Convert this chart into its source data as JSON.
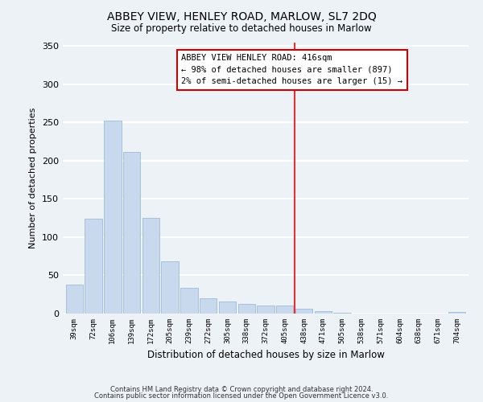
{
  "title": "ABBEY VIEW, HENLEY ROAD, MARLOW, SL7 2DQ",
  "subtitle": "Size of property relative to detached houses in Marlow",
  "xlabel": "Distribution of detached houses by size in Marlow",
  "ylabel": "Number of detached properties",
  "bar_color": "#c8d9ee",
  "bar_edge_color": "#a0bcd8",
  "background_color": "#edf2f7",
  "grid_color": "white",
  "tick_labels": [
    "39sqm",
    "72sqm",
    "106sqm",
    "139sqm",
    "172sqm",
    "205sqm",
    "239sqm",
    "272sqm",
    "305sqm",
    "338sqm",
    "372sqm",
    "405sqm",
    "438sqm",
    "471sqm",
    "505sqm",
    "538sqm",
    "571sqm",
    "604sqm",
    "638sqm",
    "671sqm",
    "704sqm"
  ],
  "bar_heights": [
    38,
    124,
    252,
    211,
    125,
    68,
    34,
    20,
    16,
    13,
    11,
    10,
    6,
    3,
    1,
    0,
    0,
    0,
    0,
    0,
    2
  ],
  "vline_x": 11.5,
  "vline_color": "red",
  "annotation_title": "ABBEY VIEW HENLEY ROAD: 416sqm",
  "annotation_line1": "← 98% of detached houses are smaller (897)",
  "annotation_line2": "2% of semi-detached houses are larger (15) →",
  "ylim": [
    0,
    355
  ],
  "yticks": [
    0,
    50,
    100,
    150,
    200,
    250,
    300,
    350
  ],
  "footnote1": "Contains HM Land Registry data © Crown copyright and database right 2024.",
  "footnote2": "Contains public sector information licensed under the Open Government Licence v3.0."
}
